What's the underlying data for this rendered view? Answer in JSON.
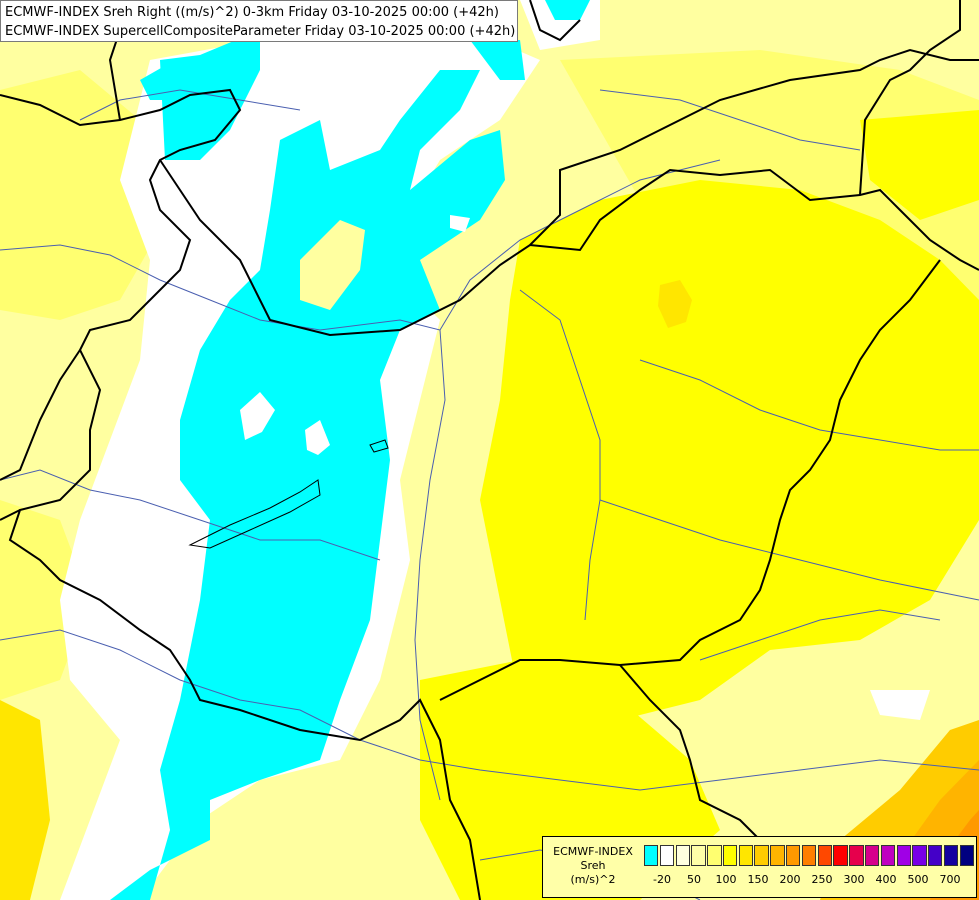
{
  "title": {
    "line1": "ECMWF-INDEX Sreh Right ((m/s)^2) 0-3km Friday 03-10-2025 00:00 (+42h)",
    "line2": "ECMWF-INDEX SupercellCompositeParameter Friday 03-10-2025 00:00 (+42h)"
  },
  "legend": {
    "line1": "ECMWF-INDEX",
    "line2": "Sreh",
    "line3": "(m/s)^2",
    "colors": [
      "#00ffff",
      "#ffffff",
      "#ffffe0",
      "#ffffa8",
      "#ffff70",
      "#ffff00",
      "#ffe600",
      "#ffcc00",
      "#ffb400",
      "#ff9900",
      "#ff7f00",
      "#ff4800",
      "#ff0000",
      "#e6004c",
      "#d6008c",
      "#c000c0",
      "#a000e6",
      "#7800e6",
      "#4400c8",
      "#1400a0",
      "#000080"
    ],
    "ticks": [
      "-20",
      "50",
      "100",
      "150",
      "200",
      "250",
      "300",
      "400",
      "500",
      "700"
    ]
  },
  "map_colors": {
    "cyan": "#00ffff",
    "white": "#ffffff",
    "pale_yellow": "#ffffa0",
    "light_yellow": "#ffff70",
    "yellow": "#ffff00",
    "gold": "#ffe600",
    "orange": "#ffb400",
    "deep_orange": "#ff9900",
    "border": "#000000",
    "river": "#4a5fb0"
  }
}
